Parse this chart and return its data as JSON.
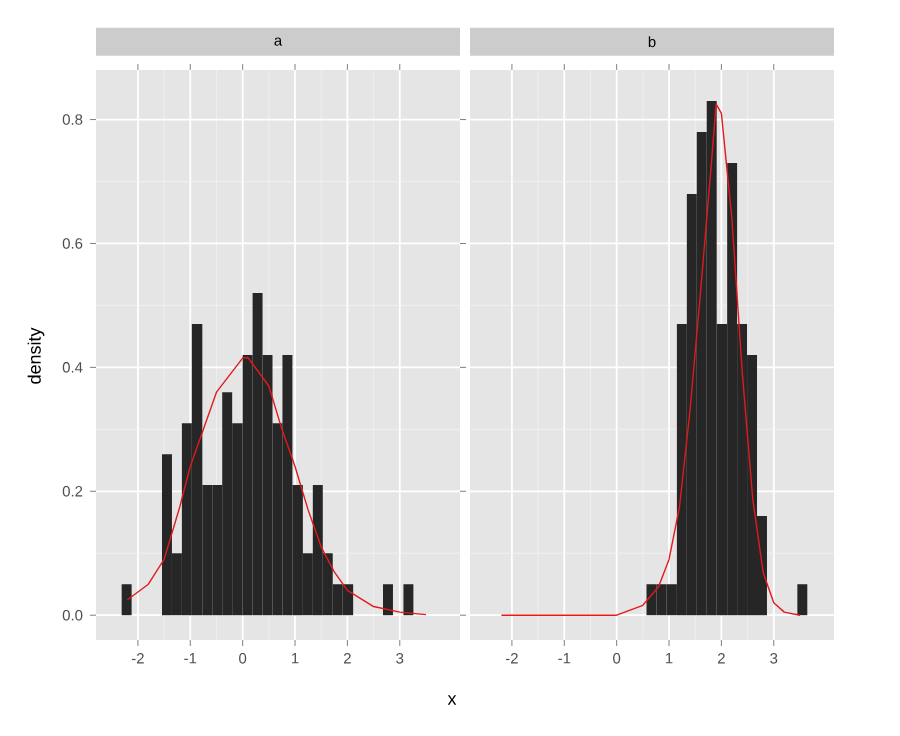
{
  "chart_data": [
    {
      "type": "histogram",
      "title": "a",
      "xlabel": "x",
      "ylabel": "density",
      "grid": true,
      "xlim": [
        -2.8,
        4.15
      ],
      "ylim": [
        -0.04,
        0.88
      ],
      "xticks": [
        -2,
        -1,
        0,
        1,
        2,
        3
      ],
      "yticks": [
        {
          "value": 0,
          "label": "0.0"
        },
        0.2,
        0.4,
        0.6,
        0.8
      ],
      "bins": [
        -2.31,
        -2.12,
        -1.54,
        -1.35,
        -1.16,
        -0.97,
        -0.77,
        -0.58,
        -0.39,
        -0.2,
        0.0,
        0.19,
        0.38,
        0.57,
        0.76,
        0.95,
        1.15,
        1.34,
        1.53,
        1.72,
        1.91,
        2.11,
        2.68,
        2.87,
        3.07,
        3.26
      ],
      "series": [
        {
          "color": "#262626",
          "values": [
            0.05,
            0,
            0.26,
            0.1,
            0.31,
            0.47,
            0.21,
            0.21,
            0.36,
            0.31,
            0.42,
            0.52,
            0.42,
            0.31,
            0.42,
            0.21,
            0.1,
            0.21,
            0.1,
            0.05,
            0.05,
            0,
            0.05,
            0,
            0.05
          ]
        },
        {
          "type": "line",
          "color": "#e31a1c",
          "x": [
            -2.2,
            -1.8,
            -1.5,
            -1.2,
            -1.0,
            -0.75,
            -0.5,
            0.0,
            0.1,
            0.5,
            0.75,
            1.0,
            1.25,
            1.5,
            1.75,
            2.0,
            2.5,
            3.0,
            3.5
          ],
          "values": [
            0.025,
            0.05,
            0.09,
            0.175,
            0.24,
            0.3,
            0.36,
            0.415,
            0.416,
            0.37,
            0.3,
            0.24,
            0.17,
            0.11,
            0.07,
            0.04,
            0.014,
            0.005,
            0.001
          ]
        }
      ]
    },
    {
      "type": "histogram",
      "title": "b",
      "grid": true,
      "tick_labels": "x",
      "xlim": [
        -2.8,
        4.15
      ],
      "ylim": [
        -0.04,
        0.88
      ],
      "xticks": [
        -2,
        -1,
        0,
        1,
        2,
        3
      ],
      "yticks": [
        0,
        0.2,
        0.4,
        0.6,
        0.8
      ],
      "bins": [
        0.57,
        0.76,
        0.95,
        1.15,
        1.34,
        1.53,
        1.72,
        1.91,
        2.11,
        2.3,
        2.49,
        2.68,
        2.87,
        3.45,
        3.64
      ],
      "series": [
        {
          "color": "#262626",
          "values": [
            0.05,
            0.05,
            0.05,
            0.47,
            0.68,
            0.78,
            0.83,
            0.47,
            0.73,
            0.47,
            0.42,
            0.16,
            0,
            0.05
          ]
        },
        {
          "type": "line",
          "color": "#e31a1c",
          "x": [
            -2.2,
            -1.0,
            0.0,
            0.5,
            0.8,
            1.0,
            1.2,
            1.4,
            1.6,
            1.8,
            1.9,
            2.0,
            2.2,
            2.4,
            2.6,
            2.8,
            3.0,
            3.2,
            3.5
          ],
          "values": [
            0,
            0,
            0,
            0.016,
            0.046,
            0.09,
            0.175,
            0.33,
            0.52,
            0.72,
            0.825,
            0.81,
            0.64,
            0.39,
            0.186,
            0.068,
            0.02,
            0.005,
            0
          ]
        }
      ]
    }
  ]
}
